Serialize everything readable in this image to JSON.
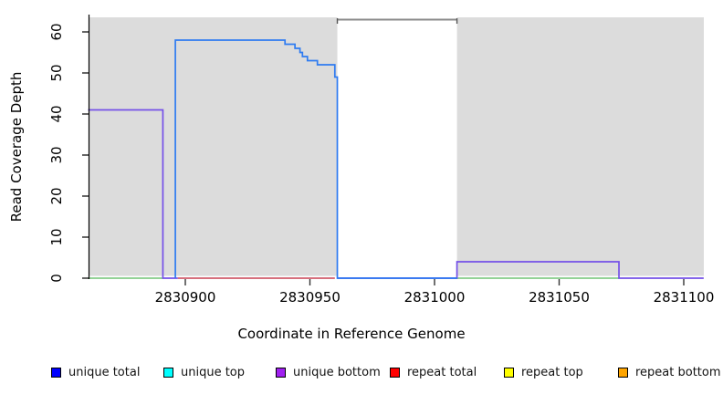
{
  "chart_data": {
    "type": "line",
    "title": "",
    "xlabel": "Coordinate in Reference Genome",
    "ylabel": "Read Coverage Depth",
    "xlim": [
      2830861,
      2831108
    ],
    "ylim": [
      0,
      63
    ],
    "x_ticks": [
      2830900,
      2830950,
      2831000,
      2831050,
      2831100
    ],
    "y_ticks": [
      0,
      10,
      20,
      30,
      40,
      50,
      60
    ],
    "grid": false,
    "legend_position": "bottom",
    "plot_background": "#dcdcdc",
    "gap_region": {
      "x_start": 2830961,
      "x_end": 2831009,
      "fill": "#ffffff",
      "top_marker_value": 63,
      "top_marker_color": "#8a8a8a",
      "end_cap_color": "#555555"
    },
    "series": [
      {
        "name": "green baseline (unlegended)",
        "color": "#84cc88",
        "segments": [
          [
            [
              2830861,
              0
            ],
            [
              2830891,
              0
            ]
          ],
          [
            [
              2831009,
              0
            ],
            [
              2831074,
              0
            ]
          ]
        ]
      },
      {
        "name": "repeat total",
        "color": "#d15b6b",
        "segments": [
          [
            [
              2830897,
              0
            ],
            [
              2830960,
              0
            ]
          ]
        ]
      },
      {
        "name": "unique bottom",
        "color": "#7450e8",
        "segments": [
          [
            [
              2830861,
              41
            ],
            [
              2830891,
              41
            ],
            [
              2830891,
              0
            ],
            [
              2830897,
              0
            ]
          ],
          [
            [
              2830961,
              0
            ],
            [
              2831009,
              0
            ],
            [
              2831009,
              4
            ],
            [
              2831074,
              4
            ],
            [
              2831074,
              0
            ],
            [
              2831108,
              0
            ]
          ]
        ]
      },
      {
        "name": "unique total",
        "color": "#2e7bf1",
        "segments": [
          [
            [
              2830896,
              0
            ],
            [
              2830896,
              58
            ],
            [
              2830940,
              58
            ],
            [
              2830940,
              57
            ],
            [
              2830944,
              57
            ],
            [
              2830944,
              56
            ],
            [
              2830946,
              56
            ],
            [
              2830946,
              55
            ],
            [
              2830947,
              55
            ],
            [
              2830947,
              54
            ],
            [
              2830949,
              54
            ],
            [
              2830949,
              53
            ],
            [
              2830953,
              53
            ],
            [
              2830953,
              52
            ],
            [
              2830960,
              52
            ],
            [
              2830960,
              49
            ],
            [
              2830961,
              49
            ],
            [
              2830961,
              0
            ],
            [
              2831009,
              0
            ]
          ]
        ]
      }
    ],
    "legend": {
      "items": [
        {
          "label": "unique total",
          "color": "#0000ff"
        },
        {
          "label": "unique top",
          "color": "#00ffff"
        },
        {
          "label": "unique bottom",
          "color": "#a020f0"
        },
        {
          "label": "repeat total",
          "color": "#ff0000"
        },
        {
          "label": "repeat top",
          "color": "#ffff00"
        },
        {
          "label": "repeat bottom",
          "color": "#ffa500"
        }
      ]
    }
  }
}
